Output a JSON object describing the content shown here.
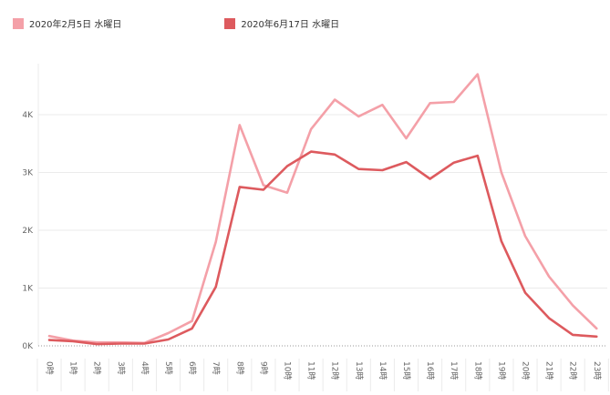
{
  "chart_data": {
    "type": "line",
    "categories": [
      "0時",
      "1時",
      "2時",
      "3時",
      "4時",
      "5時",
      "6時",
      "7時",
      "8時",
      "9時",
      "10時",
      "11時",
      "12時",
      "13時",
      "14時",
      "15時",
      "16時",
      "17時",
      "18時",
      "19時",
      "20時",
      "21時",
      "22時",
      "23時"
    ],
    "series": [
      {
        "name": "2020年2月5日 水曜日",
        "color": "#f4a0a8",
        "values": [
          170,
          90,
          60,
          60,
          50,
          220,
          430,
          1800,
          3820,
          2780,
          2650,
          3750,
          4260,
          3970,
          4170,
          3590,
          4200,
          4220,
          4700,
          3000,
          1900,
          1200,
          700,
          300
        ]
      },
      {
        "name": "2020年6月17日 水曜日",
        "color": "#dd5a5e",
        "values": [
          100,
          80,
          30,
          40,
          40,
          110,
          300,
          1020,
          2750,
          2700,
          3110,
          3360,
          3310,
          3060,
          3040,
          3180,
          2890,
          3170,
          3290,
          1810,
          920,
          480,
          190,
          160
        ]
      }
    ],
    "y_ticks": [
      {
        "value": 0,
        "label": "0K"
      },
      {
        "value": 1000,
        "label": "1K"
      },
      {
        "value": 2000,
        "label": "2K"
      },
      {
        "value": 3000,
        "label": "3K"
      },
      {
        "value": 4000,
        "label": "4K"
      }
    ],
    "ylim": [
      0,
      5000
    ],
    "xlabel": "",
    "ylabel": "",
    "grid": true,
    "legend_position": "top-left",
    "colors": {
      "grid": "#ebebeb",
      "axis": "#999999",
      "text": "#666666"
    }
  }
}
